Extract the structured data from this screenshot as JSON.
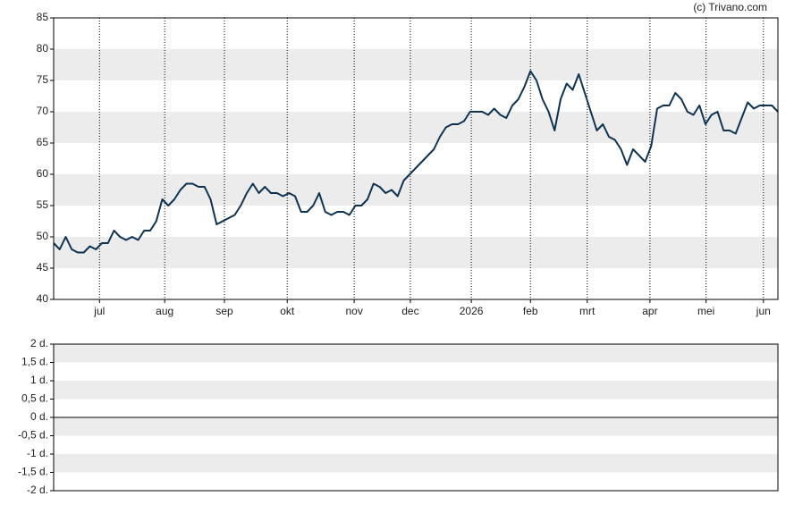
{
  "source": "(c) Trivano.com",
  "chart_data": [
    {
      "type": "line",
      "xlim": [
        0,
        120
      ],
      "xticks": [
        {
          "value": 7.6,
          "label": "jul"
        },
        {
          "value": 18.4,
          "label": "aug"
        },
        {
          "value": 28.3,
          "label": "sep"
        },
        {
          "value": 38.7,
          "label": "okt"
        },
        {
          "value": 49.8,
          "label": "nov"
        },
        {
          "value": 59.1,
          "label": "dec"
        },
        {
          "value": 69.2,
          "label": "2026"
        },
        {
          "value": 79.0,
          "label": "feb"
        },
        {
          "value": 88.4,
          "label": "mrt"
        },
        {
          "value": 98.8,
          "label": "apr"
        },
        {
          "value": 108.1,
          "label": "mei"
        },
        {
          "value": 117.6,
          "label": "jun"
        }
      ],
      "ylim": [
        40,
        85
      ],
      "yticks": [
        40,
        45,
        50,
        55,
        60,
        65,
        70,
        75,
        80,
        85
      ],
      "grid": true,
      "series": [
        {
          "color": "#0e3352",
          "values": [
            49,
            48,
            50,
            48,
            47.5,
            47.5,
            48.5,
            48,
            49,
            49,
            51,
            50,
            49.5,
            50,
            49.5,
            51,
            51,
            52.5,
            56,
            55,
            56,
            57.5,
            58.5,
            58.5,
            58,
            58,
            56,
            52,
            52.5,
            53,
            53.5,
            55,
            57,
            58.5,
            57,
            58,
            57,
            57,
            56.5,
            57,
            56.5,
            54,
            54,
            55,
            57,
            54,
            53.5,
            54,
            54,
            53.5,
            55,
            55,
            56,
            58.5,
            58,
            57,
            57.5,
            56.5,
            59,
            60,
            61,
            62,
            63,
            64,
            66,
            67.5,
            68,
            68,
            68.5,
            70,
            70,
            70,
            69.5,
            70.5,
            69.5,
            69,
            71,
            72,
            74,
            76.5,
            75,
            72,
            70,
            67,
            72,
            74.5,
            73.5,
            76,
            73,
            70,
            67,
            68,
            66,
            65.5,
            64,
            61.5,
            64,
            63,
            62,
            64.5,
            70.5,
            71,
            71,
            73,
            72,
            70,
            69.5,
            71,
            68,
            69.5,
            70,
            67,
            67,
            66.5,
            69,
            71.5,
            70.5,
            71,
            71,
            71,
            70
          ]
        }
      ]
    },
    {
      "type": "line",
      "ylim": [
        -2,
        2
      ],
      "yticks": [
        {
          "value": 2,
          "label": "2 d."
        },
        {
          "value": 1.5,
          "label": "1,5 d."
        },
        {
          "value": 1,
          "label": "1 d."
        },
        {
          "value": 0.5,
          "label": "0,5 d."
        },
        {
          "value": 0,
          "label": "0 d."
        },
        {
          "value": -0.5,
          "label": "-0,5 d."
        },
        {
          "value": -1,
          "label": "-1 d."
        },
        {
          "value": -1.5,
          "label": "-1,5 d."
        },
        {
          "value": -2,
          "label": "-2 d."
        }
      ],
      "grid": true
    }
  ]
}
